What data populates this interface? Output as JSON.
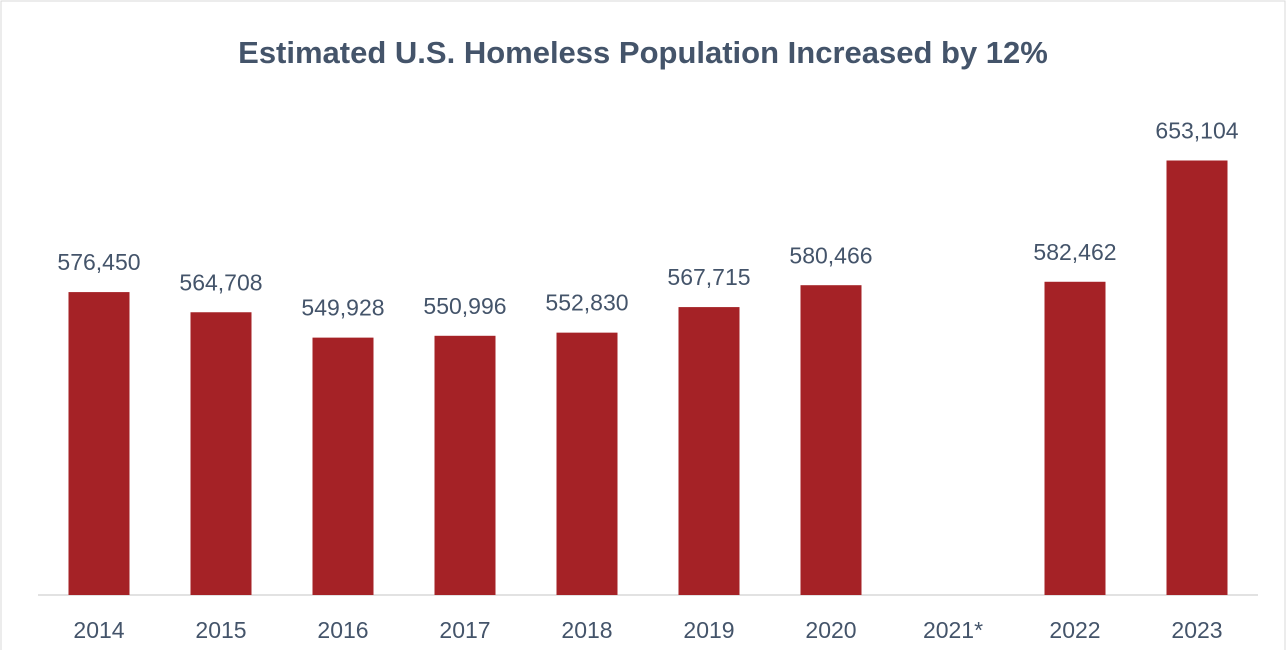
{
  "chart_data": {
    "type": "bar",
    "title": "Estimated U.S. Homeless Population Increased by 12%",
    "categories": [
      "2014",
      "2015",
      "2016",
      "2017",
      "2018",
      "2019",
      "2020",
      "2021*",
      "2022",
      "2023"
    ],
    "values": [
      576450,
      564708,
      549928,
      550996,
      552830,
      567715,
      580466,
      null,
      582462,
      653104
    ],
    "value_labels": [
      "576,450",
      "564,708",
      "549,928",
      "550,996",
      "552,830",
      "567,715",
      "580,466",
      null,
      "582,462",
      "653,104"
    ],
    "color": "#a52226",
    "ylim": [
      400000,
      700000
    ]
  }
}
